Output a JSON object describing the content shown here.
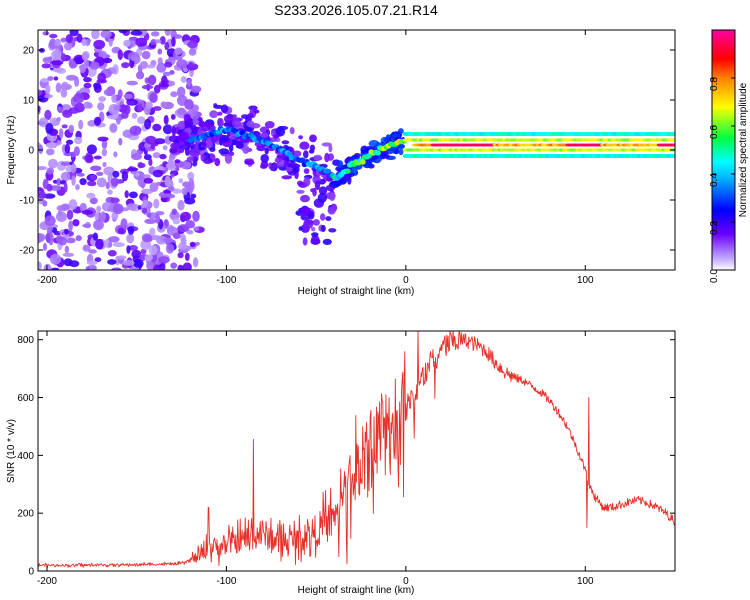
{
  "chart_data": [
    {
      "id": "spectrogram",
      "type": "heatmap",
      "title": "S233.2026.105.07.21.R14",
      "xlabel": "Height of straight line (km)",
      "ylabel": "Frequency (Hz)",
      "xlim": [
        -205,
        150
      ],
      "ylim": [
        -24,
        24
      ],
      "xticks": [
        -200,
        -100,
        0,
        100
      ],
      "yticks": [
        -20,
        -10,
        0,
        10,
        20
      ],
      "colorbar": {
        "label": "Normalized spectral amplitude",
        "range": [
          0,
          1
        ],
        "ticks": [
          "0.0",
          "0.2",
          "0.4",
          "0.6",
          "0.8"
        ],
        "tick_values": [
          0,
          0.2,
          0.4,
          0.6,
          0.8
        ],
        "colormap": [
          "#ffffff",
          "#6a00ff",
          "#0000ff",
          "#00ffff",
          "#00ff00",
          "#ffff00",
          "#ff8000",
          "#ff0000",
          "#ff00a0"
        ]
      },
      "features": [
        {
          "name": "noise",
          "x_range": [
            -205,
            -125
          ],
          "freq_spread": 24,
          "amplitude": 0.15
        },
        {
          "name": "tail",
          "track": [
            [
              -120,
              2
            ],
            [
              -100,
              4
            ],
            [
              -80,
              2
            ],
            [
              -60,
              -2
            ],
            [
              -45,
              -4
            ],
            [
              -38,
              -6
            ],
            [
              -30,
              -3
            ],
            [
              -20,
              -1
            ],
            [
              -10,
              1
            ],
            [
              0,
              2
            ],
            [
              10,
              1
            ],
            [
              150,
              1
            ]
          ]
        },
        {
          "name": "head-echo",
          "x_range": [
            0,
            150
          ],
          "freq": 1,
          "amplitude": 0.95
        }
      ]
    },
    {
      "id": "snr",
      "type": "line",
      "xlabel": "Height of straight line (km)",
      "ylabel": "SNR (10 * v/v)",
      "xlim": [
        -205,
        150
      ],
      "ylim": [
        0,
        830
      ],
      "xticks": [
        -200,
        -100,
        0,
        100
      ],
      "yticks": [
        0,
        200,
        400,
        600,
        800
      ],
      "series": [
        {
          "name": "SNR",
          "color": "#e8302a",
          "x": [
            -205,
            -180,
            -150,
            -125,
            -115,
            -110,
            -100,
            -90,
            -80,
            -70,
            -60,
            -50,
            -40,
            -35,
            -30,
            -25,
            -20,
            -15,
            -10,
            -5,
            0,
            5,
            10,
            15,
            20,
            25,
            30,
            35,
            40,
            45,
            50,
            55,
            60,
            65,
            70,
            75,
            80,
            85,
            90,
            95,
            100,
            102,
            105,
            110,
            115,
            120,
            125,
            130,
            135,
            140,
            145,
            150
          ],
          "y": [
            20,
            20,
            22,
            25,
            50,
            80,
            90,
            110,
            130,
            100,
            110,
            140,
            180,
            250,
            320,
            380,
            420,
            460,
            480,
            520,
            560,
            610,
            680,
            730,
            770,
            790,
            800,
            795,
            780,
            760,
            720,
            690,
            670,
            660,
            640,
            620,
            590,
            550,
            500,
            430,
            350,
            300,
            260,
            220,
            220,
            230,
            240,
            245,
            235,
            220,
            200,
            170
          ]
        }
      ],
      "spikes": [
        {
          "x": -85,
          "y": 455
        },
        {
          "x": -110,
          "y": 220
        },
        {
          "x": 102,
          "y": 600
        },
        {
          "x": 101,
          "y": 150
        }
      ]
    }
  ]
}
